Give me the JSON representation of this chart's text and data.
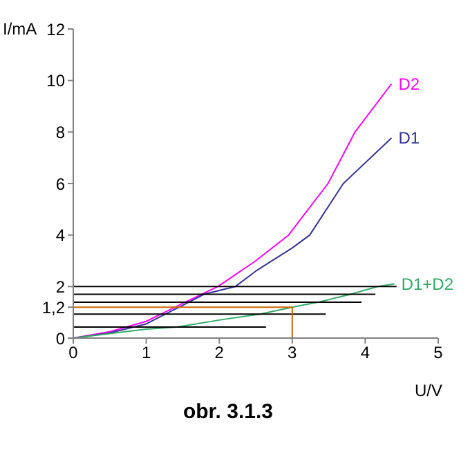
{
  "chart_data": {
    "type": "line",
    "title": "obr. 3.1.3",
    "xlabel": "U/V",
    "ylabel": "I/mA",
    "xlim": [
      0,
      5
    ],
    "xticks": [
      0,
      1,
      2,
      3,
      4,
      5
    ],
    "ylim": [
      0,
      12
    ],
    "yticks": [
      0,
      {
        "value": 1.2,
        "label": "1,2"
      },
      2,
      4,
      6,
      8,
      10,
      12
    ],
    "grid": false,
    "legend": false,
    "marker": "none",
    "line_style": "solid",
    "series": [
      {
        "name": "D2",
        "color": "#ff00ff",
        "x": [
          0,
          0.5,
          1,
          1.5,
          1.98,
          2.5,
          2.95,
          3.49,
          3.86,
          4.36
        ],
        "values": [
          0,
          0.25,
          0.65,
          1.35,
          2.0,
          3.0,
          4.0,
          6.0,
          8.0,
          9.87
        ]
      },
      {
        "name": "D1",
        "color": "#333399",
        "x": [
          0,
          0.5,
          1,
          1.58,
          1.79,
          2.22,
          2.5,
          3,
          3.24,
          3.7,
          4.36
        ],
        "values": [
          0,
          0.2,
          0.55,
          1.39,
          1.7,
          2.0,
          2.6,
          3.5,
          4.0,
          6.0,
          7.77
        ]
      },
      {
        "name": "D1+D2",
        "color": "#33aa66",
        "x": [
          0,
          1,
          1.42,
          2,
          2.56,
          3,
          3.35,
          3.8,
          4.17,
          4.4
        ],
        "values": [
          0,
          0.35,
          0.43,
          0.7,
          0.93,
          1.2,
          1.39,
          1.7,
          2.0,
          2.1
        ]
      },
      {
        "color": "#000000",
        "x": [
          0,
          4.43
        ],
        "values": [
          2.0,
          2.0
        ]
      },
      {
        "color": "#000000",
        "x": [
          0,
          4.14
        ],
        "values": [
          1.7,
          1.7
        ]
      },
      {
        "color": "#000000",
        "x": [
          0,
          3.95
        ],
        "values": [
          1.39,
          1.39
        ]
      },
      {
        "color": "#000000",
        "x": [
          0,
          3.46
        ],
        "values": [
          0.93,
          0.93
        ]
      },
      {
        "color": "#000000",
        "x": [
          0,
          2.64
        ],
        "values": [
          0.43,
          0.43
        ]
      },
      {
        "color": "#cc6600",
        "x": [
          0,
          3,
          3
        ],
        "values": [
          1.2,
          1.2,
          0
        ]
      }
    ]
  }
}
